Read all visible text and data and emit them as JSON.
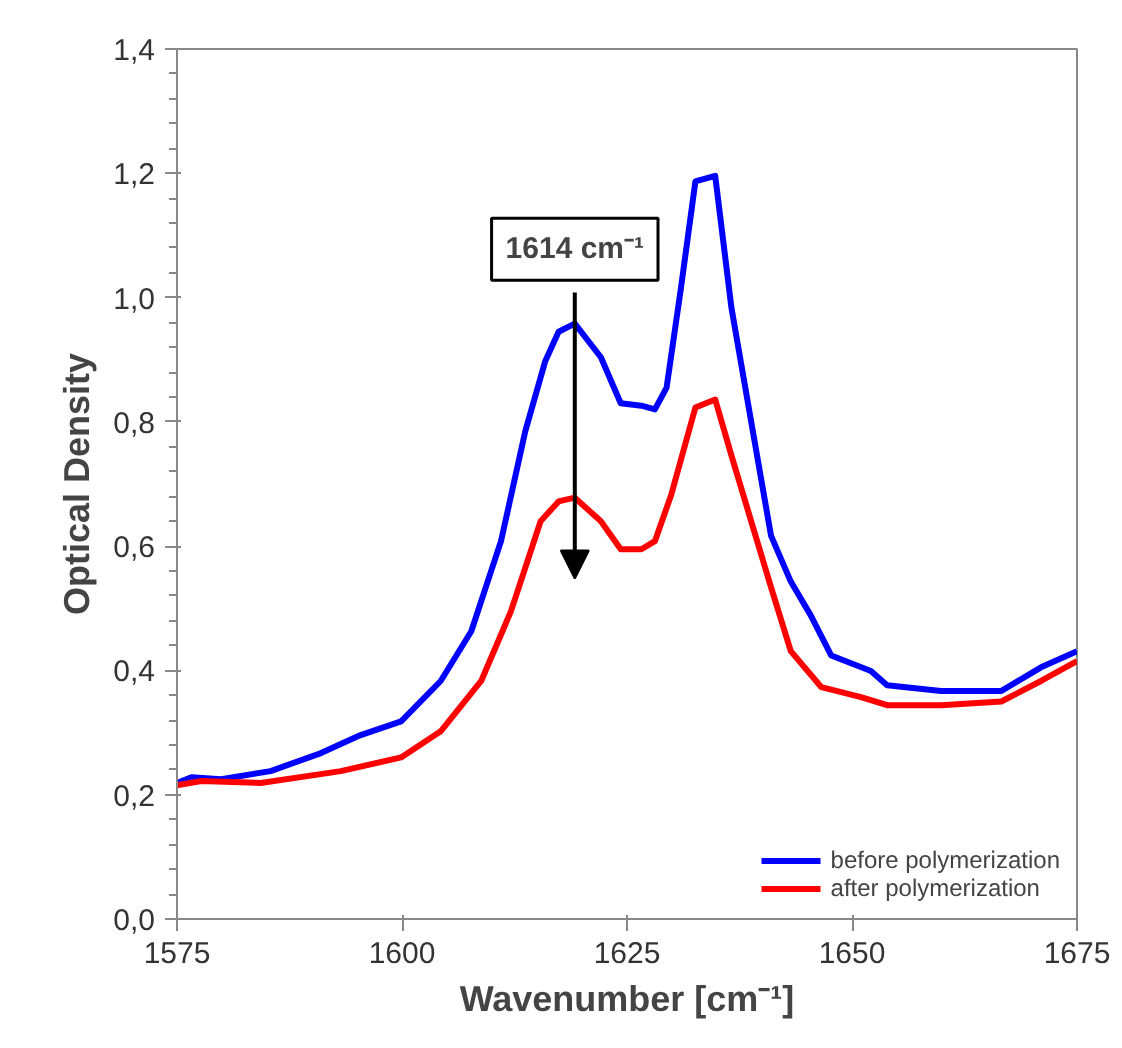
{
  "chart_data": {
    "type": "line",
    "xlabel": "Wavenumber [cm⁻¹]",
    "ylabel": "Optical Density",
    "xlim": [
      1575,
      1675
    ],
    "xticks": [
      1575,
      1600,
      1625,
      1650,
      1675
    ],
    "ylim": [
      0,
      1.4
    ],
    "yticks": [
      {
        "value": 0,
        "label": "0,0"
      },
      {
        "value": 0.2,
        "label": "0,2"
      },
      {
        "value": 0.4,
        "label": "0,4"
      },
      {
        "value": 0.6,
        "label": "0,6"
      },
      {
        "value": 0.8,
        "label": "0,8"
      },
      {
        "value": 1.0,
        "label": "1,0"
      },
      {
        "value": 1.2,
        "label": "1,2"
      },
      {
        "value": 1.4,
        "label": "1,4"
      }
    ],
    "grid": false,
    "legend": "bottom right",
    "line_style": "solid",
    "annotations": [
      {
        "text": "1614 cm⁻¹",
        "x": 1619.2,
        "y": 0.958
      }
    ],
    "series": [
      {
        "name": "before polymerization",
        "color": "#0000ff",
        "x": [
          1575,
          1576.6,
          1579.9,
          1585.4,
          1591,
          1595.4,
          1599.9,
          1604.3,
          1607.7,
          1611,
          1613.7,
          1615.9,
          1617.4,
          1619.2,
          1622.1,
          1624.3,
          1626.6,
          1628.1,
          1629.4,
          1631,
          1632.6,
          1634.8,
          1636.6,
          1638.8,
          1641,
          1643.2,
          1645.4,
          1647.7,
          1652.1,
          1653.9,
          1659.9,
          1666.6,
          1671,
          1675
        ],
        "values": [
          0.219,
          0.228,
          0.225,
          0.238,
          0.267,
          0.296,
          0.318,
          0.383,
          0.463,
          0.608,
          0.785,
          0.897,
          0.945,
          0.958,
          0.904,
          0.83,
          0.826,
          0.82,
          0.855,
          1.016,
          1.187,
          1.196,
          0.984,
          0.8,
          0.617,
          0.543,
          0.489,
          0.424,
          0.399,
          0.376,
          0.367,
          0.367,
          0.405,
          0.431
        ]
      },
      {
        "name": "after polymerization",
        "color": "#ff0000",
        "x": [
          1575,
          1577.7,
          1584.3,
          1593.2,
          1599.9,
          1604.3,
          1608.8,
          1612.1,
          1615.4,
          1617.4,
          1619.2,
          1622.1,
          1624.3,
          1626.6,
          1628.1,
          1629.9,
          1632.6,
          1634.8,
          1636.6,
          1638.8,
          1641,
          1643.2,
          1646.6,
          1651,
          1653.9,
          1659.9,
          1666.6,
          1671,
          1675
        ],
        "values": [
          0.215,
          0.222,
          0.219,
          0.238,
          0.26,
          0.302,
          0.383,
          0.495,
          0.64,
          0.672,
          0.678,
          0.64,
          0.595,
          0.595,
          0.608,
          0.682,
          0.823,
          0.836,
          0.746,
          0.64,
          0.534,
          0.431,
          0.373,
          0.357,
          0.344,
          0.344,
          0.35,
          0.383,
          0.415
        ]
      }
    ]
  }
}
